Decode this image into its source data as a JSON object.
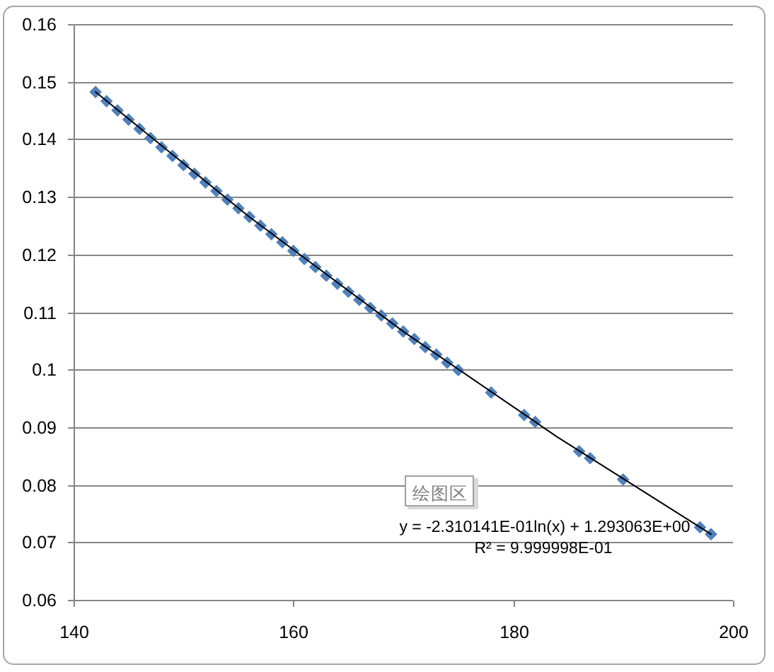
{
  "chart_data": {
    "type": "scatter",
    "xlim": [
      140,
      200
    ],
    "xticks": [
      140,
      160,
      180,
      200
    ],
    "ylim": [
      0.06,
      0.16
    ],
    "yticks": [
      0.06,
      0.07,
      0.08,
      0.09,
      0.1,
      0.11,
      0.12,
      0.13,
      0.14,
      0.15,
      0.16
    ],
    "grid": "y",
    "marker": "diamond",
    "series": [
      {
        "color": "#4f81bd",
        "x": [
          142,
          143,
          144,
          145,
          146,
          147,
          148,
          149,
          150,
          151,
          152,
          153,
          154,
          155,
          156,
          157,
          158,
          159,
          160,
          161,
          162,
          163,
          164,
          165,
          166,
          167,
          168,
          169,
          170,
          171,
          172,
          173,
          174,
          175,
          178,
          181,
          182,
          186,
          187,
          190,
          197,
          198
        ],
        "values": [
          0.1482,
          0.1466,
          0.145,
          0.1434,
          0.1418,
          0.1402,
          0.1386,
          0.1371,
          0.1355,
          0.134,
          0.1325,
          0.131,
          0.1295,
          0.128,
          0.1265,
          0.125,
          0.1235,
          0.1221,
          0.1206,
          0.1192,
          0.1178,
          0.1163,
          0.1149,
          0.1135,
          0.1121,
          0.1107,
          0.1094,
          0.108,
          0.1066,
          0.1053,
          0.1039,
          0.1026,
          0.1012,
          0.0999,
          0.096,
          0.0921,
          0.0909,
          0.0858,
          0.0846,
          0.0809,
          0.0726,
          0.0714
        ]
      },
      {
        "type": "line",
        "color": "#000000",
        "marker": "none",
        "line_style": "solid",
        "x": [
          142,
          156,
          170,
          184,
          198
        ],
        "values": [
          0.1482,
          0.1265,
          0.1066,
          0.0883,
          0.0714
        ]
      }
    ],
    "annotations": [
      "y = -2.310141E-01ln(x) + 1.293063E+00",
      "R² = 9.999998E-01",
      "绘图区"
    ]
  }
}
